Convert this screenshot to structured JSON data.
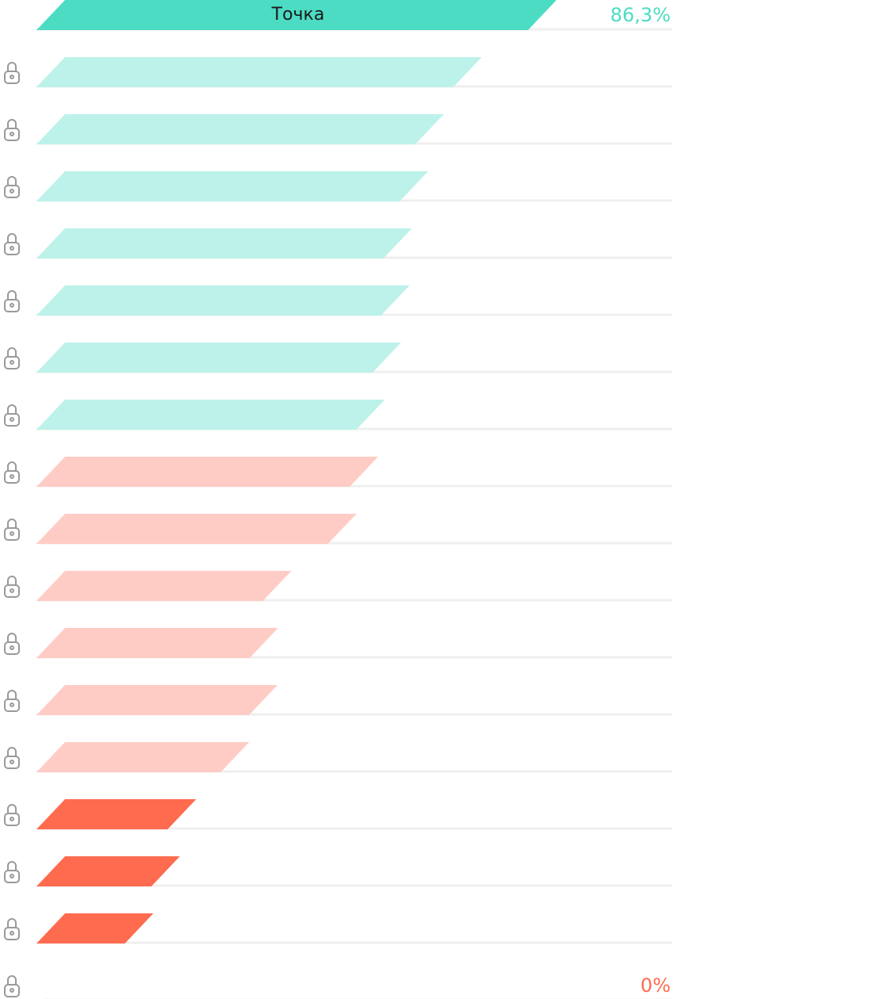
{
  "chart_data": {
    "type": "bar",
    "orientation": "horizontal",
    "xlim": [
      0,
      100
    ],
    "grid": false,
    "legend": "none",
    "rows": [
      {
        "label": "Точка",
        "value": 86.3,
        "locked": false,
        "color": "#4cdcc3"
      },
      {
        "label": "",
        "value": 73.9,
        "locked": true,
        "color": "#bcf2e9"
      },
      {
        "label": "",
        "value": 67.6,
        "locked": true,
        "color": "#bcf2e9"
      },
      {
        "label": "",
        "value": 65.0,
        "locked": true,
        "color": "#bcf2e9"
      },
      {
        "label": "",
        "value": 62.3,
        "locked": true,
        "color": "#bcf2e9"
      },
      {
        "label": "",
        "value": 61.9,
        "locked": true,
        "color": "#bcf2e9"
      },
      {
        "label": "",
        "value": 60.5,
        "locked": true,
        "color": "#bcf2e9"
      },
      {
        "label": "",
        "value": 57.8,
        "locked": true,
        "color": "#bcf2e9"
      },
      {
        "label": "",
        "value": 56.7,
        "locked": true,
        "color": "#ffccc5"
      },
      {
        "label": "",
        "value": 53.1,
        "locked": true,
        "color": "#ffccc5"
      },
      {
        "label": "",
        "value": 42.3,
        "locked": true,
        "color": "#ffccc5"
      },
      {
        "label": "",
        "value": 40.1,
        "locked": true,
        "color": "#ffccc5"
      },
      {
        "label": "",
        "value": 40.0,
        "locked": true,
        "color": "#ffccc5"
      },
      {
        "label": "",
        "value": 35.3,
        "locked": true,
        "color": "#ffccc5"
      },
      {
        "label": "",
        "value": 26.5,
        "locked": true,
        "color": "#ff6b4f"
      },
      {
        "label": "",
        "value": 23.8,
        "locked": true,
        "color": "#ff6b4f"
      },
      {
        "label": "",
        "value": 19.4,
        "locked": true,
        "color": "#ff6b4f"
      },
      {
        "label": "",
        "value": 0,
        "locked": true,
        "color": "#ff6b4f"
      }
    ],
    "value_labels": [
      {
        "row": 0,
        "text": "86,3%",
        "color": "#4cdcc3"
      },
      {
        "row": 17,
        "text": "0%",
        "color": "#ff6b4f"
      }
    ],
    "colors": {
      "gridline": "#efefef",
      "lock_icon": "#9a9a9a"
    }
  }
}
